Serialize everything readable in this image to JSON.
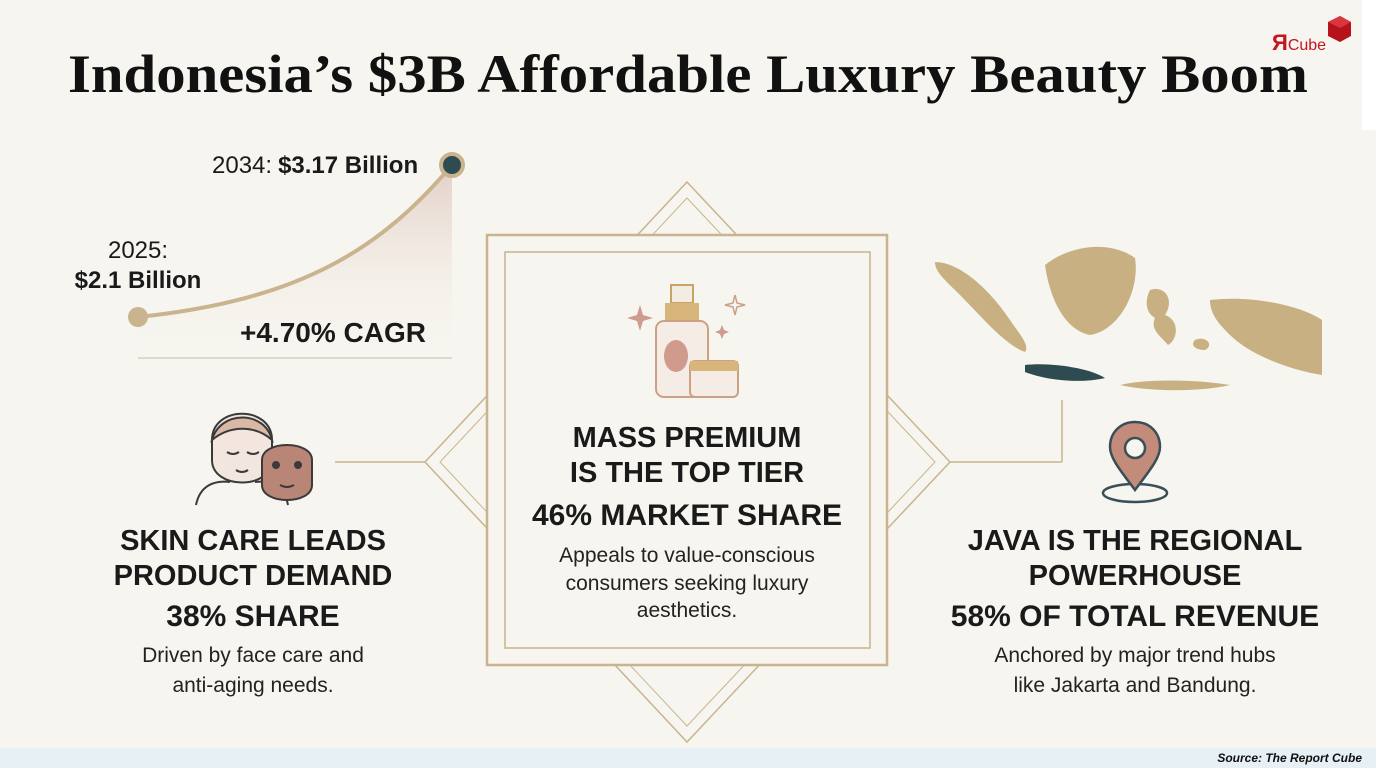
{
  "logo": {
    "mark": "Я",
    "name": "Cube"
  },
  "header": {
    "title": "Indonesia’s $3B Affordable Luxury Beauty Boom"
  },
  "growth": {
    "end": {
      "year": "2034:",
      "value": "$3.17 Billion"
    },
    "start": {
      "year": "2025:",
      "value": "$2.1 Billion"
    },
    "cagr": "+4.70% CAGR"
  },
  "panels": [
    {
      "heading_lines": [
        "SKIN CARE LEADS",
        "PRODUCT DEMAND"
      ],
      "stat": "38% SHARE",
      "description_lines": [
        "Driven by face care and",
        "anti-aging needs."
      ]
    },
    {
      "heading_lines": [
        "MASS PREMIUM",
        "IS THE TOP TIER"
      ],
      "stat": "46% MARKET SHARE",
      "description_lines": [
        "Appeals to value-conscious",
        "consumers seeking luxury",
        "aesthetics."
      ]
    },
    {
      "heading_lines": [
        "JAVA IS THE REGIONAL",
        "POWERHOUSE"
      ],
      "stat": "58% OF TOTAL REVENUE",
      "description_lines": [
        "Anchored by major trend hubs",
        "like Jakarta and Bandung."
      ]
    }
  ],
  "footer": {
    "source": "Source: The Report Cube"
  }
}
